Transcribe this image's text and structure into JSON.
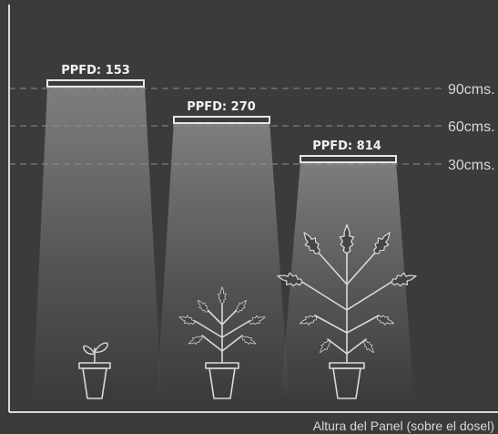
{
  "diagram": {
    "x_axis_label": "Altura del Panel (sobre el dosel)",
    "height_levels": [
      {
        "label": "90cms."
      },
      {
        "label": "60cms."
      },
      {
        "label": "30cms."
      }
    ],
    "panels": [
      {
        "ppfd_label": "PPFD: 153",
        "ppfd_value": 153,
        "height": "90cms.",
        "plant": "seedling"
      },
      {
        "ppfd_label": "PPFD: 270",
        "ppfd_value": 270,
        "height": "60cms.",
        "plant": "medium plant"
      },
      {
        "ppfd_label": "PPFD: 814",
        "ppfd_value": 814,
        "height": "30cms.",
        "plant": "large plant"
      }
    ],
    "colors": {
      "background": "#3b3b3c",
      "lines": "#d9d9d9",
      "light_beam": "#ffffff"
    }
  }
}
